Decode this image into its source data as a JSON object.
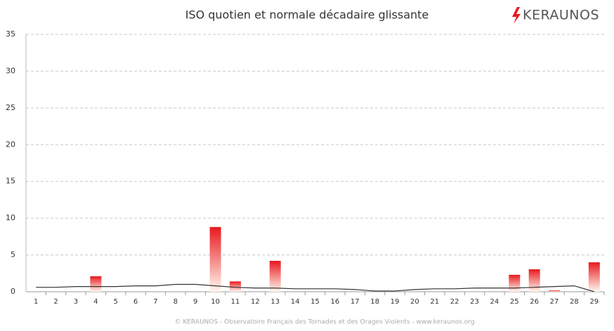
{
  "chart_data": {
    "type": "bar",
    "title": "ISO quotien et normale décadaire glissante",
    "logo": "KERAUNOS",
    "footer": "© KERAUNOS - Observatoire Français des Tornades et des Orages Violents - www.keraunos.org",
    "categories": [
      "1",
      "2",
      "3",
      "4",
      "5",
      "6",
      "7",
      "8",
      "9",
      "10",
      "11",
      "12",
      "13",
      "14",
      "15",
      "16",
      "17",
      "18",
      "19",
      "20",
      "21",
      "22",
      "23",
      "24",
      "25",
      "26",
      "27",
      "28",
      "29"
    ],
    "series": [
      {
        "type": "bar",
        "color": "#e8191e",
        "values": [
          0,
          0,
          0,
          2.1,
          0,
          0,
          0,
          0,
          0,
          8.8,
          1.4,
          0,
          4.2,
          0,
          0,
          0,
          0,
          0,
          0,
          0,
          0,
          0,
          0,
          0,
          2.3,
          3.05,
          0.2,
          0,
          4.0
        ]
      },
      {
        "type": "line",
        "color": "#333333",
        "values": [
          0.6,
          0.6,
          0.7,
          0.7,
          0.7,
          0.8,
          0.8,
          1.0,
          1.0,
          0.8,
          0.6,
          0.5,
          0.5,
          0.4,
          0.4,
          0.4,
          0.3,
          0.1,
          0.1,
          0.3,
          0.4,
          0.4,
          0.5,
          0.5,
          0.5,
          0.6,
          0.7,
          0.8,
          0.0
        ]
      }
    ],
    "ylim": [
      0,
      35
    ],
    "yticks": [
      0,
      5,
      10,
      15,
      20,
      25,
      30,
      35
    ],
    "grid": true
  }
}
